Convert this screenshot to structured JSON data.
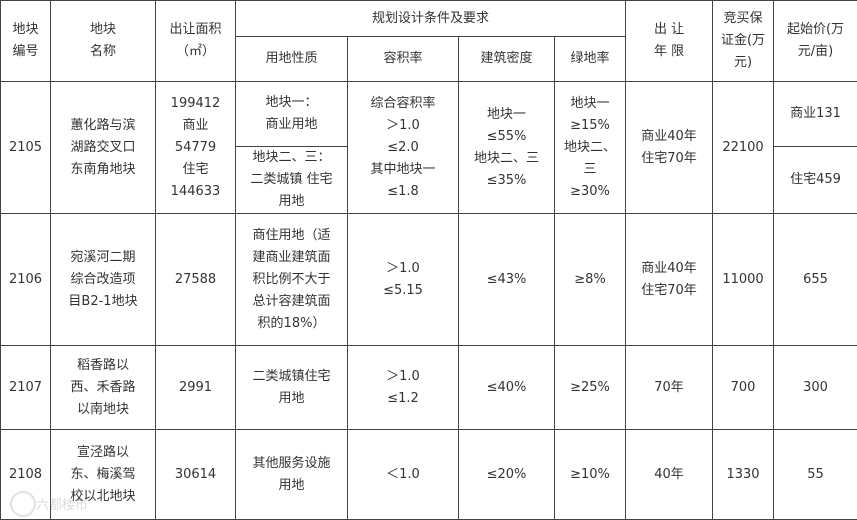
{
  "header": {
    "code": "地块\n编号",
    "name": "地块\n名称",
    "area": "出让面积\n（㎡）",
    "conditions": "规划设计条件及要求",
    "land_use": "用地性质",
    "far": "容积率",
    "density": "建筑密度",
    "green": "绿地率",
    "term": "出 让\n年 限",
    "deposit": "竞买保\n证金(万\n元)",
    "start_price": "起始价(万\n元/亩)"
  },
  "rows": [
    {
      "code": "2105",
      "name": "蕙化路与滨\n湖路交叉口\n东南角地块",
      "area": "199412\n商业\n54779\n住宅\n144633",
      "land_use_1": "地块一：\n商业用地",
      "land_use_2": "地块二、三：\n二类城镇 住宅\n用地",
      "far": "综合容积率\n＞1.0\n≤2.0\n其中地块一\n≤1.8",
      "density": "地块一\n≤55%\n地块二、三\n≤35%",
      "green": "地块一\n≥15%\n地块二、\n三\n≥30%",
      "term": "商业40年\n住宅70年",
      "deposit": "22100",
      "price_1": "商业131",
      "price_2": "住宅459"
    },
    {
      "code": "2106",
      "name": "宛溪河二期\n综合改造项\n目B2-1地块",
      "area": "27588",
      "land_use": "商住用地（适\n建商业建筑面\n积比例不大于\n总计容建筑面\n积的18%）",
      "far": "＞1.0\n≤5.15",
      "density": "≤43%",
      "green": "≥8%",
      "term": "商业40年\n住宅70年",
      "deposit": "11000",
      "price": "655"
    },
    {
      "code": "2107",
      "name": "稻香路以\n西、禾香路\n以南地块",
      "area": "2991",
      "land_use": "二类城镇住宅\n用地",
      "far": "＞1.0\n≤1.2",
      "density": "≤40%",
      "green": "≥25%",
      "term": "70年",
      "deposit": "700",
      "price": "300"
    },
    {
      "code": "2108",
      "name": "宣泾路以\n东、梅溪驾\n校以北地块",
      "area": "30614",
      "land_use": "其他服务设施\n用地",
      "far": "＜1.0",
      "density": "≤20%",
      "green": "≥10%",
      "term": "40年",
      "deposit": "1330",
      "price": "55"
    }
  ],
  "watermark": "六都楼市"
}
